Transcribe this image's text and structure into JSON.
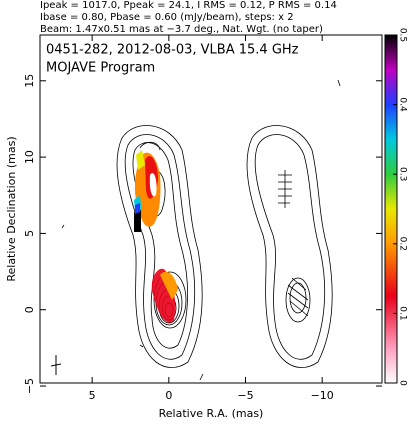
{
  "chart_data": {
    "type": "contour",
    "header": [
      "Ipeak = 1017.0, Ppeak = 24.1, I RMS = 0.12, P RMS = 0.14",
      "Ibase = 0.80, Pbase = 0.60 (mJy/beam), steps: x 2",
      "Beam: 1.47x0.51 mas at −3.7 deg., Nat. Wgt. (no taper)"
    ],
    "annotations": [
      "0451-282, 2012-08-03, VLBA 15.4 GHz",
      "MOJAVE Program"
    ],
    "xlabel": "Relative R.A. (mas)",
    "ylabel": "Relative Declination (mas)",
    "xlim": [
      8.4,
      -13.9
    ],
    "xticks": [
      5,
      0,
      {
        "value": -5,
        "label": "−5"
      },
      {
        "value": -10,
        "label": "−10"
      }
    ],
    "ylim": [
      -4.8,
      18
    ],
    "yticks": [
      {
        "value": -5,
        "label": "−5"
      },
      0,
      5,
      10,
      15
    ],
    "clim": [
      0,
      0.5
    ],
    "cticks": [
      0,
      0.1,
      0.2,
      0.3,
      0.4,
      0.5
    ]
  }
}
